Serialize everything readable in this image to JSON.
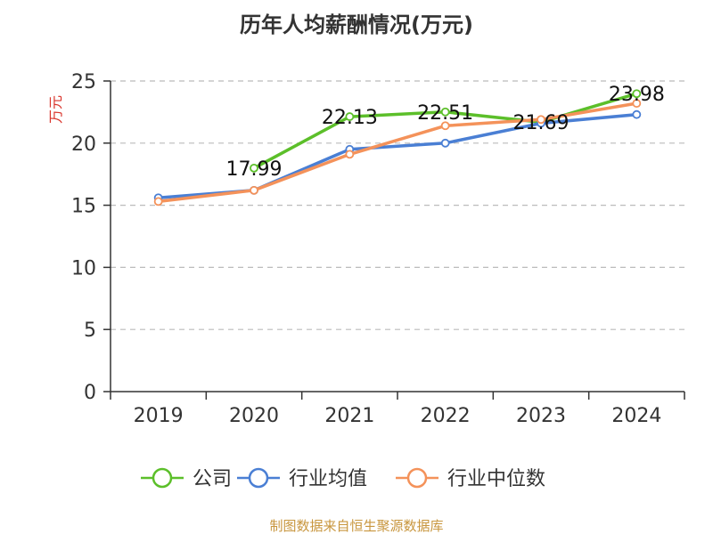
{
  "chart_data": {
    "type": "line",
    "title": "历年人均薪酬情况(万元)",
    "ylabel": "万元",
    "xlabel": "",
    "ylim": [
      0,
      25
    ],
    "yticks": [
      0,
      5,
      10,
      15,
      20,
      25
    ],
    "categories": [
      "2019",
      "2020",
      "2021",
      "2022",
      "2023",
      "2024"
    ],
    "grid": true,
    "legend_position": "bottom",
    "series": [
      {
        "name": "公司",
        "color": "#5cbf2a",
        "values": [
          null,
          17.99,
          22.13,
          22.51,
          21.69,
          23.98
        ],
        "labels": [
          null,
          "17.99",
          "22.13",
          "22.51",
          "21.69",
          "23.98"
        ]
      },
      {
        "name": "行业均值",
        "color": "#4a7fd4",
        "values": [
          15.6,
          16.2,
          19.5,
          20.0,
          21.6,
          22.3
        ],
        "labels": []
      },
      {
        "name": "行业中位数",
        "color": "#f4925a",
        "values": [
          15.3,
          16.2,
          19.1,
          21.4,
          21.9,
          23.2
        ],
        "labels": []
      }
    ]
  },
  "source_text": "制图数据来自恒生聚源数据库",
  "colors": {
    "axis": "#333333",
    "grid": "#bbbbbb",
    "ylabel": "#d9342b",
    "source": "#c8963e"
  }
}
